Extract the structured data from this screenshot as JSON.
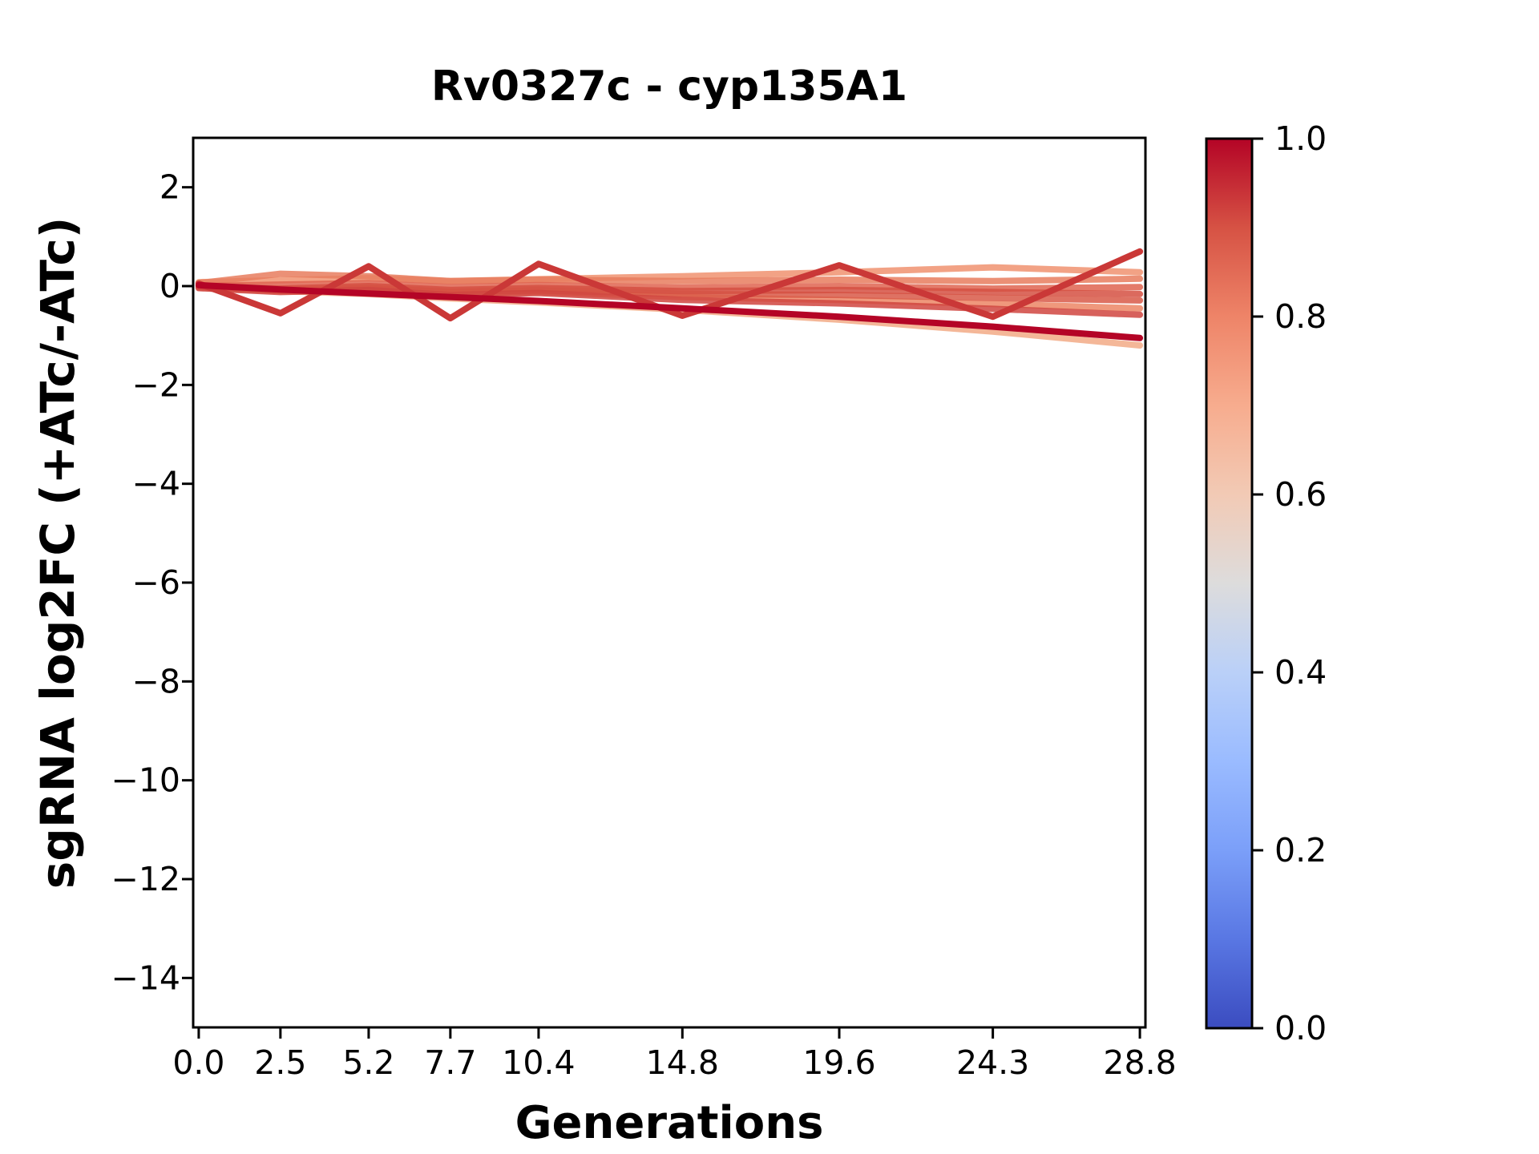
{
  "chart_data": {
    "type": "line",
    "title": "Rv0327c - cyp135A1",
    "xlabel": "Generations",
    "ylabel": "sgRNA log2FC (+ATc/-ATc)",
    "x": [
      0.0,
      2.5,
      5.2,
      7.7,
      10.4,
      14.8,
      19.6,
      24.3,
      28.8
    ],
    "x_tick_labels": [
      "0.0",
      "2.5",
      "5.2",
      "7.7",
      "10.4",
      "14.8",
      "19.6",
      "24.3",
      "28.8"
    ],
    "y_ticks": [
      2,
      0,
      -2,
      -4,
      -6,
      -8,
      -10,
      -12,
      -14
    ],
    "y_tick_labels": [
      "2",
      "0",
      "−2",
      "−4",
      "−6",
      "−8",
      "−10",
      "−12",
      "−14"
    ],
    "xlim": [
      -0.17,
      28.97
    ],
    "ylim": [
      -15,
      3
    ],
    "grid": false,
    "legend": "none",
    "series": [
      {
        "name": "series-1",
        "colormap_value": 0.65,
        "color": "#f2aa86",
        "values": [
          -0.03,
          -0.1,
          -0.16,
          -0.25,
          -0.33,
          -0.48,
          -0.68,
          -0.92,
          -1.2
        ]
      },
      {
        "name": "series-2",
        "colormap_value": 0.72,
        "color": "#f09270",
        "values": [
          0.08,
          0.12,
          0.16,
          0.1,
          0.14,
          0.2,
          0.28,
          0.38,
          0.28
        ]
      },
      {
        "name": "series-3",
        "colormap_value": 0.78,
        "color": "#e87d5e",
        "values": [
          0.06,
          0.25,
          0.2,
          0.1,
          0.13,
          0.1,
          0.13,
          0.1,
          0.15
        ]
      },
      {
        "name": "series-4",
        "colormap_value": 0.76,
        "color": "#ec8665",
        "values": [
          0.02,
          -0.1,
          -0.06,
          -0.15,
          -0.12,
          -0.22,
          -0.28,
          -0.36,
          -0.45
        ]
      },
      {
        "name": "series-5",
        "colormap_value": 0.84,
        "color": "#df6450",
        "values": [
          0.0,
          0.03,
          0.06,
          -0.02,
          0.02,
          -0.03,
          0.0,
          -0.05,
          -0.02
        ]
      },
      {
        "name": "series-6",
        "colormap_value": 0.87,
        "color": "#d85948",
        "values": [
          -0.02,
          -0.08,
          -0.04,
          -0.12,
          -0.09,
          -0.16,
          -0.18,
          -0.24,
          -0.29
        ]
      },
      {
        "name": "series-7",
        "colormap_value": 0.88,
        "color": "#d55042",
        "values": [
          0.0,
          -0.05,
          0.0,
          -0.08,
          -0.04,
          -0.1,
          -0.08,
          -0.12,
          -0.16
        ]
      },
      {
        "name": "series-8",
        "colormap_value": 0.9,
        "color": "#d04540",
        "values": [
          -0.04,
          -0.12,
          -0.08,
          -0.18,
          -0.14,
          -0.28,
          -0.35,
          -0.46,
          -0.58
        ]
      },
      {
        "name": "series-9",
        "colormap_value": 0.92,
        "color": "#ca3837",
        "values": [
          0.05,
          -0.55,
          0.4,
          -0.65,
          0.45,
          -0.6,
          0.42,
          -0.62,
          0.7
        ]
      },
      {
        "name": "series-10",
        "colormap_value": 1.0,
        "color": "#b40426",
        "values": [
          0.02,
          -0.07,
          -0.15,
          -0.22,
          -0.3,
          -0.45,
          -0.62,
          -0.82,
          -1.05
        ]
      }
    ],
    "colorbar": {
      "min": 0.0,
      "max": 1.0,
      "tick_values": [
        1.0,
        0.8,
        0.6,
        0.4,
        0.2,
        0.0
      ],
      "tick_labels": [
        "1.0",
        "0.8",
        "0.6",
        "0.4",
        "0.2",
        "0.0"
      ],
      "colormap": "coolwarm",
      "stops": [
        {
          "value": 1.0,
          "color": "#b40426"
        },
        {
          "value": 0.9,
          "color": "#d65244"
        },
        {
          "value": 0.8,
          "color": "#ee8468"
        },
        {
          "value": 0.7,
          "color": "#f7ac8e"
        },
        {
          "value": 0.6,
          "color": "#f2cab5"
        },
        {
          "value": 0.5,
          "color": "#dddcdc"
        },
        {
          "value": 0.4,
          "color": "#bad0f8"
        },
        {
          "value": 0.3,
          "color": "#9abbff"
        },
        {
          "value": 0.2,
          "color": "#7b9ff9"
        },
        {
          "value": 0.1,
          "color": "#5977e3"
        },
        {
          "value": 0.0,
          "color": "#3b4cc0"
        }
      ]
    }
  }
}
